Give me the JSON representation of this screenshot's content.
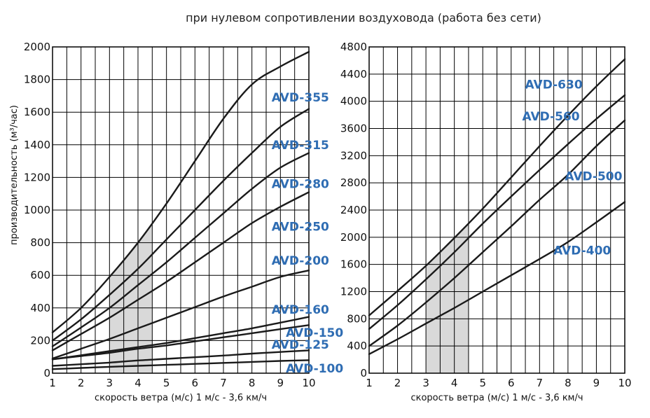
{
  "page_title": "при нулевом сопротивлении воздуховода (работа без сети)",
  "colors": {
    "curve": "#1a1a1a",
    "label": "#2f6db3",
    "shade": "#d9d9d9",
    "grid": "#000000"
  },
  "chart_data": [
    {
      "type": "line",
      "title": "",
      "xlabel": "скорость ветра (м/с) 1 м/с - 3,6 км/ч",
      "ylabel": "производительность (м³/час)",
      "xlim": [
        1,
        10
      ],
      "ylim": [
        0,
        2000
      ],
      "x_ticks": [
        1,
        2,
        3,
        4,
        5,
        6,
        7,
        8,
        9,
        10
      ],
      "y_ticks": [
        0,
        200,
        400,
        600,
        800,
        1000,
        1200,
        1400,
        1600,
        1800,
        2000
      ],
      "x_grid_step": 0.5,
      "shaded_x_range": [
        3,
        4.5
      ],
      "grid": true,
      "series": [
        {
          "name": "AVD-355",
          "points": [
            [
              1,
              250
            ],
            [
              2,
              400
            ],
            [
              3,
              590
            ],
            [
              4,
              800
            ],
            [
              5,
              1040
            ],
            [
              6,
              1300
            ],
            [
              7,
              1560
            ],
            [
              8,
              1770
            ],
            [
              9,
              1880
            ],
            [
              10,
              1970
            ]
          ],
          "label_pos": [
            9.7,
            1690
          ]
        },
        {
          "name": "AVD-315",
          "points": [
            [
              1,
              200
            ],
            [
              2,
              330
            ],
            [
              3,
              480
            ],
            [
              4,
              640
            ],
            [
              5,
              820
            ],
            [
              6,
              1000
            ],
            [
              7,
              1180
            ],
            [
              8,
              1350
            ],
            [
              9,
              1510
            ],
            [
              10,
              1620
            ]
          ],
          "label_pos": [
            9.7,
            1400
          ]
        },
        {
          "name": "AVD-280",
          "points": [
            [
              1,
              165
            ],
            [
              2,
              280
            ],
            [
              3,
              400
            ],
            [
              4,
              540
            ],
            [
              5,
              680
            ],
            [
              6,
              830
            ],
            [
              7,
              980
            ],
            [
              8,
              1130
            ],
            [
              9,
              1260
            ],
            [
              10,
              1350
            ]
          ],
          "label_pos": [
            9.7,
            1160
          ]
        },
        {
          "name": "AVD-250",
          "points": [
            [
              1,
              140
            ],
            [
              2,
              240
            ],
            [
              3,
              340
            ],
            [
              4,
              450
            ],
            [
              5,
              560
            ],
            [
              6,
              680
            ],
            [
              7,
              800
            ],
            [
              8,
              920
            ],
            [
              9,
              1020
            ],
            [
              10,
              1110
            ]
          ],
          "label_pos": [
            9.7,
            900
          ]
        },
        {
          "name": "AVD-200",
          "points": [
            [
              1,
              90
            ],
            [
              2,
              150
            ],
            [
              3,
              210
            ],
            [
              4,
              275
            ],
            [
              5,
              340
            ],
            [
              6,
              405
            ],
            [
              7,
              470
            ],
            [
              8,
              530
            ],
            [
              9,
              590
            ],
            [
              10,
              630
            ]
          ],
          "label_pos": [
            9.7,
            690
          ]
        },
        {
          "name": "AVD-160",
          "points": [
            [
              1,
              85
            ],
            [
              2,
              110
            ],
            [
              3,
              135
            ],
            [
              4,
              160
            ],
            [
              5,
              185
            ],
            [
              6,
              215
            ],
            [
              7,
              245
            ],
            [
              8,
              275
            ],
            [
              9,
              310
            ],
            [
              10,
              345
            ]
          ],
          "label_pos": [
            9.7,
            390
          ]
        },
        {
          "name": "AVD-150",
          "points": [
            [
              1,
              85
            ],
            [
              2,
              105
            ],
            [
              3,
              125
            ],
            [
              4,
              150
            ],
            [
              5,
              170
            ],
            [
              6,
              195
            ],
            [
              7,
              220
            ],
            [
              8,
              245
            ],
            [
              9,
              270
            ],
            [
              10,
              295
            ]
          ],
          "label_pos": [
            10.2,
            250
          ]
        },
        {
          "name": "AVD-125",
          "points": [
            [
              1,
              45
            ],
            [
              2,
              55
            ],
            [
              3,
              65
            ],
            [
              4,
              78
            ],
            [
              5,
              88
            ],
            [
              6,
              98
            ],
            [
              7,
              108
            ],
            [
              8,
              120
            ],
            [
              9,
              130
            ],
            [
              10,
              140
            ]
          ],
          "label_pos": [
            9.7,
            175
          ]
        },
        {
          "name": "AVD-100",
          "points": [
            [
              1,
              25
            ],
            [
              2,
              32
            ],
            [
              3,
              39
            ],
            [
              4,
              45
            ],
            [
              5,
              51
            ],
            [
              6,
              57
            ],
            [
              7,
              63
            ],
            [
              8,
              69
            ],
            [
              9,
              75
            ],
            [
              10,
              80
            ]
          ],
          "label_pos": [
            10.2,
            30
          ]
        }
      ]
    },
    {
      "type": "line",
      "title": "",
      "xlabel": "скорость ветра (м/с) 1 м/с - 3,6 км/ч",
      "ylabel": "",
      "xlim": [
        1,
        10
      ],
      "ylim": [
        0,
        4800
      ],
      "x_ticks": [
        1,
        2,
        3,
        4,
        5,
        6,
        7,
        8,
        9,
        10
      ],
      "y_ticks": [
        0,
        400,
        800,
        1200,
        1600,
        2000,
        2400,
        2800,
        3200,
        3600,
        4000,
        4400,
        4800
      ],
      "x_grid_step": 0.5,
      "shaded_x_range": [
        3,
        4.5
      ],
      "grid": true,
      "series": [
        {
          "name": "AVD-630",
          "points": [
            [
              1,
              850
            ],
            [
              2,
              1210
            ],
            [
              3,
              1580
            ],
            [
              4,
              1990
            ],
            [
              5,
              2420
            ],
            [
              6,
              2880
            ],
            [
              7,
              3340
            ],
            [
              8,
              3790
            ],
            [
              9,
              4220
            ],
            [
              10,
              4620
            ]
          ],
          "label_pos": [
            7.5,
            4250
          ]
        },
        {
          "name": "AVD-560",
          "points": [
            [
              1,
              650
            ],
            [
              2,
              1000
            ],
            [
              3,
              1380
            ],
            [
              4,
              1780
            ],
            [
              5,
              2200
            ],
            [
              6,
              2600
            ],
            [
              7,
              2990
            ],
            [
              8,
              3370
            ],
            [
              9,
              3740
            ],
            [
              10,
              4090
            ]
          ],
          "label_pos": [
            7.4,
            3780
          ]
        },
        {
          "name": "AVD-500",
          "points": [
            [
              1,
              400
            ],
            [
              2,
              700
            ],
            [
              3,
              1040
            ],
            [
              4,
              1400
            ],
            [
              5,
              1780
            ],
            [
              6,
              2160
            ],
            [
              7,
              2550
            ],
            [
              8,
              2920
            ],
            [
              9,
              3340
            ],
            [
              10,
              3720
            ]
          ],
          "label_pos": [
            8.9,
            2900
          ]
        },
        {
          "name": "AVD-400",
          "points": [
            [
              1,
              280
            ],
            [
              2,
              500
            ],
            [
              3,
              730
            ],
            [
              4,
              960
            ],
            [
              5,
              1200
            ],
            [
              6,
              1440
            ],
            [
              7,
              1680
            ],
            [
              8,
              1930
            ],
            [
              9,
              2220
            ],
            [
              10,
              2520
            ]
          ],
          "label_pos": [
            8.5,
            1810
          ]
        }
      ]
    }
  ]
}
